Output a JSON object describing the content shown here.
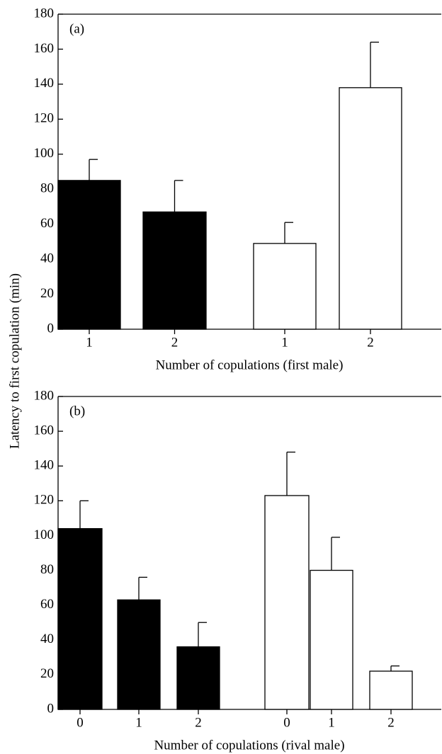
{
  "ylabel": "Latency to first copulation (min)",
  "chart_data": [
    {
      "type": "bar",
      "label": "(a)",
      "xlabel": "Number of copulations (first male)",
      "categories": [
        "1",
        "2",
        "1",
        "2"
      ],
      "values": [
        85,
        67,
        49,
        138
      ],
      "errors": [
        12,
        18,
        12,
        26
      ],
      "colors": [
        "#000000",
        "#000000",
        "#ffffff",
        "#ffffff"
      ],
      "ylim": [
        0,
        180
      ],
      "yticks": [
        0,
        20,
        40,
        60,
        80,
        100,
        120,
        140,
        160,
        180
      ]
    },
    {
      "type": "bar",
      "label": "(b)",
      "xlabel": "Number of copulations (rival male)",
      "categories": [
        "0",
        "1",
        "2",
        "0",
        "1",
        "2"
      ],
      "values": [
        104,
        63,
        36,
        123,
        80,
        22
      ],
      "errors": [
        16,
        13,
        14,
        25,
        19,
        3
      ],
      "colors": [
        "#000000",
        "#000000",
        "#000000",
        "#ffffff",
        "#ffffff",
        "#ffffff"
      ],
      "ylim": [
        0,
        180
      ],
      "yticks": [
        0,
        20,
        40,
        60,
        80,
        100,
        120,
        140,
        160,
        180
      ]
    }
  ]
}
